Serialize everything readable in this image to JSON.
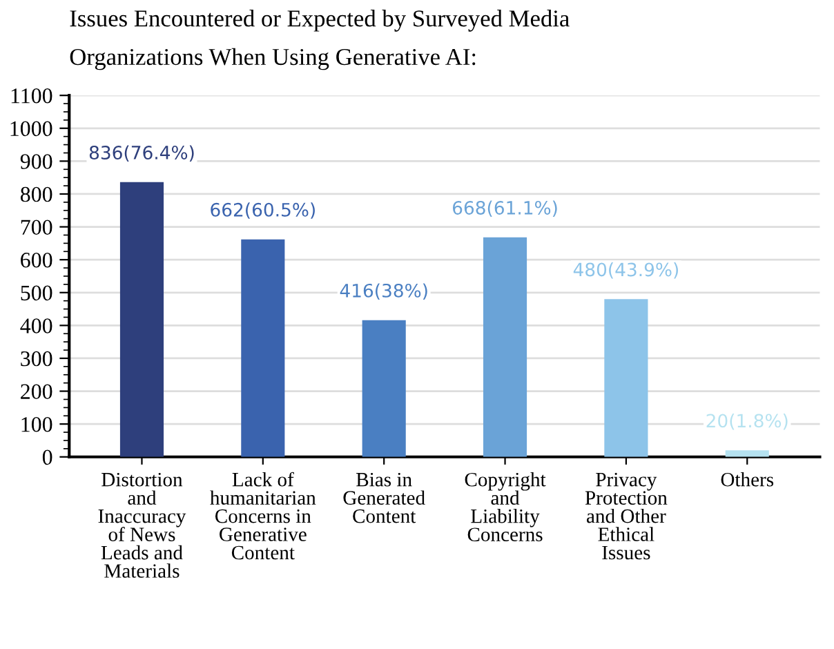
{
  "chart_data": {
    "type": "bar",
    "title": "Issues Encountered or Expected by Surveyed Media\nOrganizations When Using Generative AI:",
    "categories": [
      "Distortion\nand\nInaccuracy\nof News\nLeads and\nMaterials",
      "Lack of\nhumanitarian\nConcerns in\nGenerative\nContent",
      "Bias in\nGenerated\nContent",
      "Copyright\nand\nLiability\nConcerns",
      "Privacy\nProtection\nand Other\nEthical\nIssues",
      "Others"
    ],
    "values": [
      836,
      662,
      416,
      668,
      480,
      20
    ],
    "colors": [
      "#2e3f7c",
      "#3a63ae",
      "#4a7fc2",
      "#6aa3d7",
      "#8dc4e9",
      "#b5e2f0"
    ],
    "value_labels": [
      "836(76.4%)",
      "662(60.5%)",
      "416(38%)",
      "668(61.1%)",
      "480(43.9%)",
      "20(1.8%)"
    ],
    "ylim": [
      0,
      1100
    ],
    "yticks": [
      0,
      100,
      200,
      300,
      400,
      500,
      600,
      700,
      800,
      900,
      1000,
      1100
    ],
    "grid": "y",
    "legend": false
  }
}
